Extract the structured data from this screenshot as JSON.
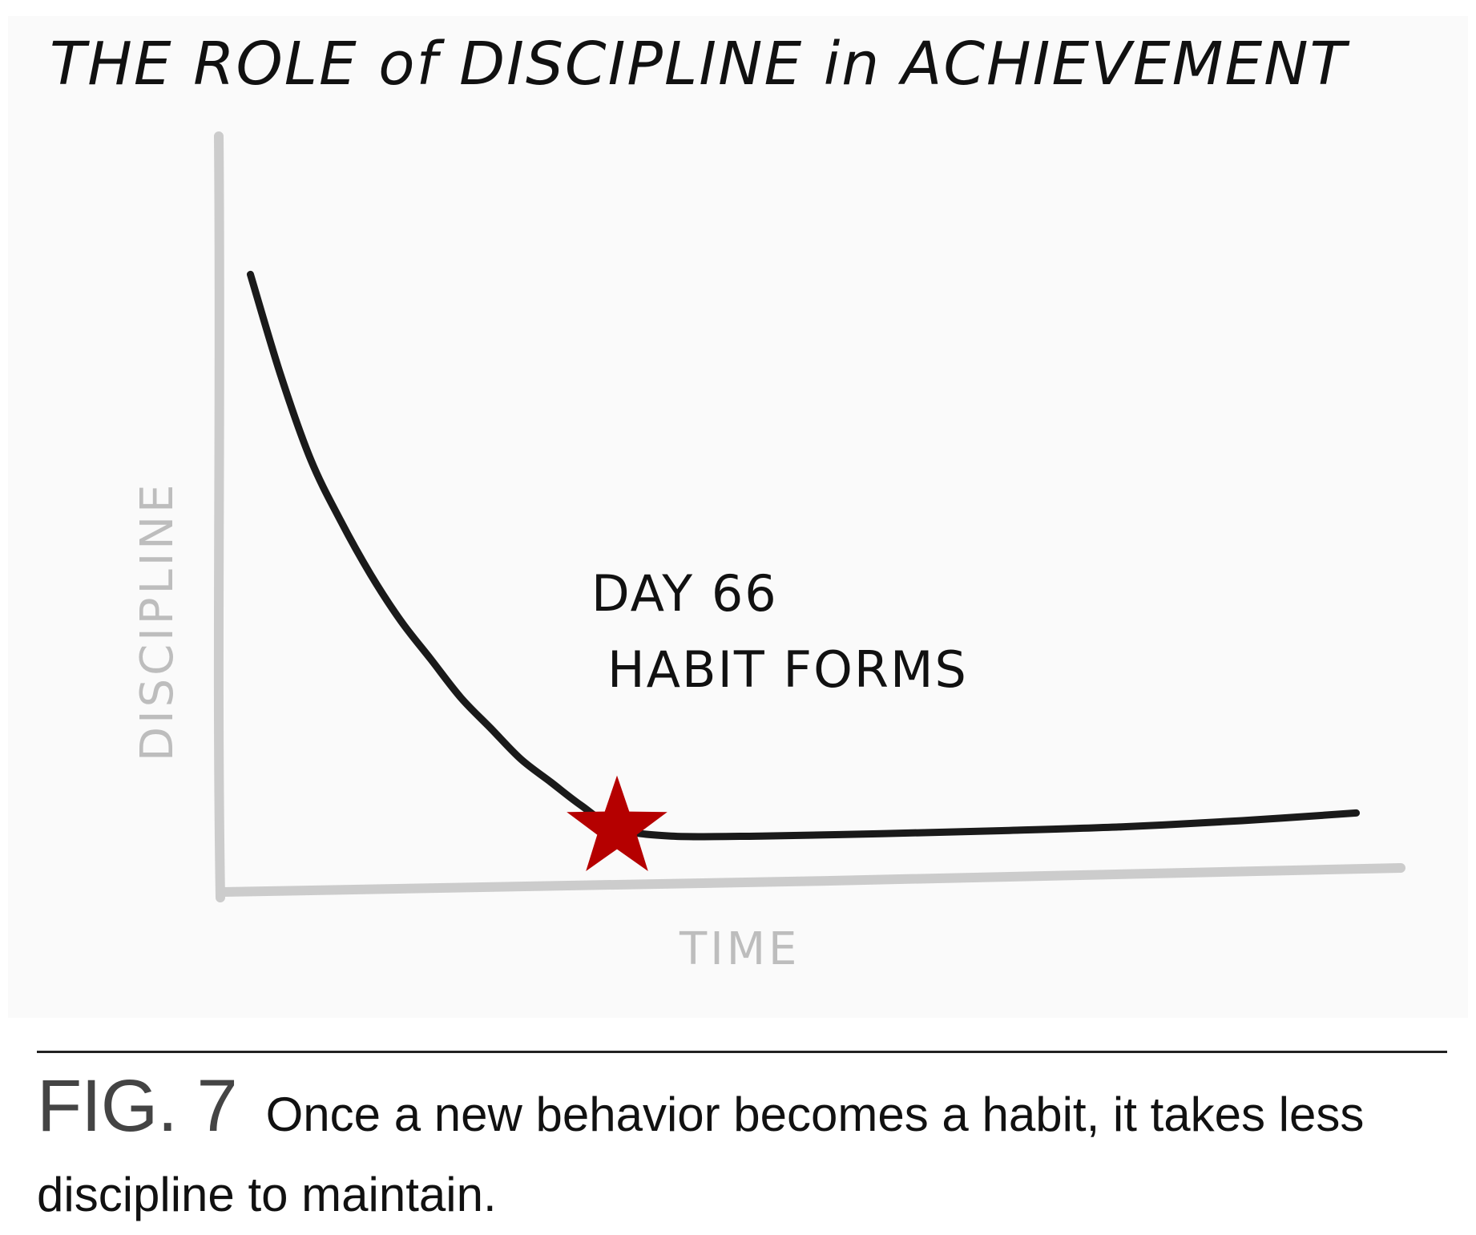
{
  "chart_data": {
    "type": "line",
    "title": "THE ROLE of DISCIPLINE in ACHIEVEMENT",
    "xlabel": "TIME",
    "ylabel": "DISCIPLINE",
    "xlim": [
      0,
      200
    ],
    "ylim": [
      0,
      100
    ],
    "grid": false,
    "series": [
      {
        "x": [
          5,
          10,
          15,
          20,
          25,
          30,
          35,
          40,
          45,
          50,
          55,
          60,
          66,
          75,
          90,
          110,
          130,
          150,
          170,
          189
        ],
        "y": [
          81,
          68,
          57,
          49,
          42,
          36,
          31,
          26,
          22,
          18,
          15,
          12,
          9,
          8,
          8,
          8.3,
          8.7,
          9.2,
          10,
          11
        ],
        "color": "#1a1a1a"
      }
    ],
    "annotations": [
      {
        "x": 66,
        "y": 9,
        "marker": "star",
        "color": "#b50000",
        "lines": [
          "DAY 66",
          "HABIT FORMS"
        ]
      }
    ]
  },
  "caption": {
    "figure_label": "FIG. 7",
    "text": "Once a new behavior becomes a habit, it takes less discipline to maintain."
  }
}
